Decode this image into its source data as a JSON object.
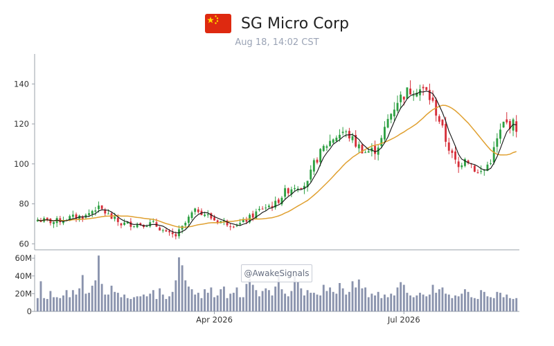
{
  "header": {
    "title": "SG Micro Corp",
    "subtitle": "Aug 18, 14:02 CST",
    "flag_icon": "china-flag-icon"
  },
  "watermark": "@AwakeSignals",
  "colors": {
    "up": "#2ea043",
    "down": "#d62f3a",
    "ma_fast": "#111111",
    "ma_slow": "#e0a030",
    "volume": "#8a93ad",
    "axis": "#9aa0aa"
  },
  "chart_data": {
    "type": "candlestick",
    "title": "SG Micro Corp",
    "subtitle": "Aug 18, 14:02 CST",
    "price_axis": {
      "ylim": [
        57,
        155
      ],
      "ticks": [
        60,
        80,
        100,
        120,
        140
      ]
    },
    "volume_axis": {
      "ylim": [
        0,
        64
      ],
      "ticks": [
        0,
        20,
        40,
        60
      ],
      "tick_labels": [
        "0",
        "20M",
        "40M",
        "60M"
      ]
    },
    "x_axis": {
      "labels": [
        {
          "text": "Apr 2026",
          "index": 55
        },
        {
          "text": "Jul 2026",
          "index": 114
        }
      ]
    },
    "anchors": [
      [
        0,
        72
      ],
      [
        5,
        71
      ],
      [
        10,
        73
      ],
      [
        15,
        74
      ],
      [
        18,
        78
      ],
      [
        20,
        77
      ],
      [
        23,
        73
      ],
      [
        26,
        70
      ],
      [
        30,
        70
      ],
      [
        33,
        70
      ],
      [
        36,
        70
      ],
      [
        38,
        68
      ],
      [
        40,
        65
      ],
      [
        43,
        64
      ],
      [
        45,
        68
      ],
      [
        48,
        75
      ],
      [
        50,
        77
      ],
      [
        52,
        75
      ],
      [
        55,
        72
      ],
      [
        58,
        71
      ],
      [
        60,
        70
      ],
      [
        63,
        70
      ],
      [
        66,
        73
      ],
      [
        70,
        78
      ],
      [
        74,
        80
      ],
      [
        77,
        86
      ],
      [
        80,
        89
      ],
      [
        84,
        90
      ],
      [
        86,
        100
      ],
      [
        89,
        108
      ],
      [
        92,
        113
      ],
      [
        95,
        116
      ],
      [
        97,
        114
      ],
      [
        99,
        110
      ],
      [
        102,
        106
      ],
      [
        105,
        107
      ],
      [
        107,
        112
      ],
      [
        109,
        122
      ],
      [
        112,
        132
      ],
      [
        115,
        136
      ],
      [
        118,
        138
      ],
      [
        121,
        136
      ],
      [
        123,
        130
      ],
      [
        125,
        122
      ],
      [
        127,
        112
      ],
      [
        129,
        104
      ],
      [
        131,
        98
      ],
      [
        133,
        104
      ],
      [
        135,
        100
      ],
      [
        137,
        95
      ],
      [
        139,
        97
      ],
      [
        141,
        102
      ],
      [
        143,
        112
      ],
      [
        145,
        120
      ],
      [
        148,
        120
      ],
      [
        149,
        118
      ]
    ],
    "volume_m": [
      15,
      34,
      15,
      14,
      23,
      16,
      16,
      15,
      18,
      24,
      16,
      24,
      19,
      26,
      41,
      20,
      21,
      29,
      35,
      63,
      31,
      19,
      19,
      29,
      22,
      21,
      16,
      19,
      15,
      14,
      16,
      17,
      17,
      19,
      17,
      20,
      24,
      14,
      26,
      19,
      14,
      17,
      22,
      35,
      61,
      52,
      35,
      28,
      25,
      19,
      21,
      15,
      25,
      21,
      27,
      16,
      18,
      25,
      28,
      15,
      20,
      21,
      27,
      16,
      16,
      31,
      37,
      30,
      24,
      17,
      23,
      26,
      24,
      18,
      28,
      41,
      25,
      20,
      17,
      23,
      40,
      33,
      26,
      18,
      24,
      21,
      21,
      19,
      18,
      30,
      23,
      27,
      22,
      20,
      32,
      26,
      19,
      22,
      34,
      27,
      36,
      26,
      27,
      16,
      20,
      18,
      22,
      15,
      19,
      16,
      20,
      18,
      27,
      33,
      30,
      21,
      18,
      16,
      18,
      21,
      19,
      17,
      19,
      30,
      21,
      25,
      27,
      20,
      19,
      15,
      18,
      17,
      20,
      25,
      22,
      16,
      15,
      14,
      24,
      22,
      17,
      16,
      15,
      22,
      21,
      16,
      19,
      15,
      14,
      15
    ]
  }
}
